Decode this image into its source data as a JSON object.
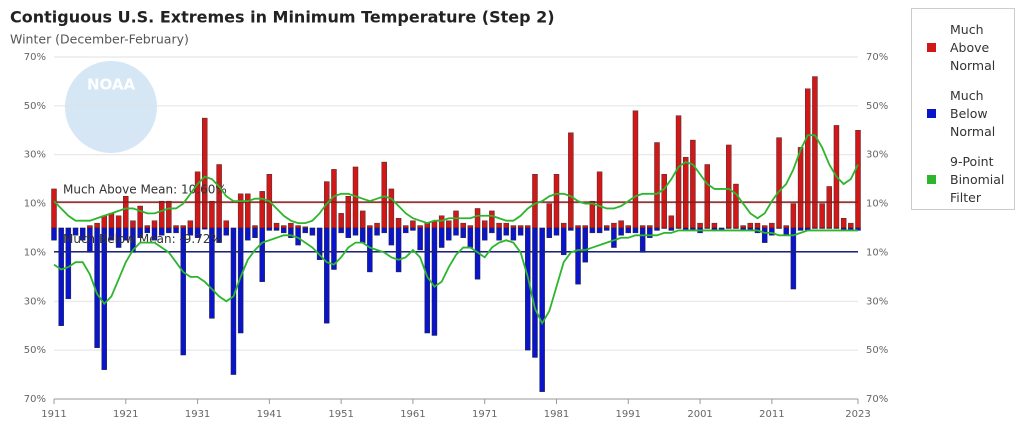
{
  "chart_data": {
    "type": "bar",
    "title": "Contiguous U.S. Extremes in Minimum Temperature (Step 2)",
    "subtitle": "Winter (December-February)",
    "logo_text": "NOAA",
    "x": [
      1911,
      1912,
      1913,
      1914,
      1915,
      1916,
      1917,
      1918,
      1919,
      1920,
      1921,
      1922,
      1923,
      1924,
      1925,
      1926,
      1927,
      1928,
      1929,
      1930,
      1931,
      1932,
      1933,
      1934,
      1935,
      1936,
      1937,
      1938,
      1939,
      1940,
      1941,
      1942,
      1943,
      1944,
      1945,
      1946,
      1947,
      1948,
      1949,
      1950,
      1951,
      1952,
      1953,
      1954,
      1955,
      1956,
      1957,
      1958,
      1959,
      1960,
      1961,
      1962,
      1963,
      1964,
      1965,
      1966,
      1967,
      1968,
      1969,
      1970,
      1971,
      1972,
      1973,
      1974,
      1975,
      1976,
      1977,
      1978,
      1979,
      1980,
      1981,
      1982,
      1983,
      1984,
      1985,
      1986,
      1987,
      1988,
      1989,
      1990,
      1991,
      1992,
      1993,
      1994,
      1995,
      1996,
      1997,
      1998,
      1999,
      2000,
      2001,
      2002,
      2003,
      2004,
      2005,
      2006,
      2007,
      2008,
      2009,
      2010,
      2011,
      2012,
      2013,
      2014,
      2015,
      2016,
      2017,
      2018,
      2019,
      2020,
      2021,
      2022,
      2023
    ],
    "series": [
      {
        "name": "Much Above Normal",
        "color": "#d01818",
        "values": [
          16,
          0,
          0,
          0,
          0,
          1,
          2,
          5,
          6,
          5,
          13,
          3,
          9,
          1,
          3,
          11,
          11,
          1,
          1,
          3,
          23,
          45,
          11,
          26,
          3,
          0,
          14,
          14,
          1,
          15,
          22,
          2,
          1,
          2,
          1,
          0.5,
          0,
          0,
          19,
          24,
          6,
          13,
          25,
          7,
          1,
          2,
          27,
          16,
          4,
          1,
          3,
          1,
          2,
          3,
          5,
          3,
          7,
          2,
          1,
          8,
          3,
          7,
          2,
          2,
          1,
          1,
          1,
          22,
          0,
          10,
          22,
          2,
          39,
          1,
          1,
          11,
          23,
          1,
          2,
          3,
          1,
          48,
          1,
          1,
          35,
          22,
          5,
          46,
          29,
          36,
          2,
          26,
          2,
          0,
          34,
          18,
          1,
          2,
          2,
          1,
          2,
          37,
          1,
          10,
          33,
          57,
          62,
          10,
          17,
          42,
          4,
          2,
          40
        ]
      },
      {
        "name": "Much Below Normal",
        "color": "#0a14c8",
        "values": [
          -5,
          -40,
          -29,
          -3,
          -5,
          -10,
          -49,
          -58,
          -5,
          -8,
          -5,
          -10,
          -4,
          -2,
          -5,
          -3,
          -2,
          -2,
          -52,
          -3,
          -4,
          -0.5,
          -37,
          -6,
          -3,
          -60,
          -43,
          -5,
          -4,
          -22,
          -1,
          -1,
          -2,
          -4,
          -7,
          -2,
          -3,
          -13,
          -39,
          -17,
          -2,
          -4,
          -3,
          -6,
          -18,
          -3,
          -2,
          -7,
          -18,
          -2,
          -1,
          -9,
          -43,
          -44,
          -8,
          -5,
          -3,
          -4,
          -8,
          -21,
          -5,
          -2,
          -5,
          -3,
          -5,
          -3,
          -50,
          -53,
          -67,
          -4,
          -3,
          -11,
          -1,
          -23,
          -14,
          -2,
          -2,
          -1,
          -8,
          -3,
          -2,
          -2,
          -10,
          -4,
          -1,
          0,
          -1,
          0,
          -1,
          -1,
          -2,
          0,
          -1,
          -1,
          0,
          0,
          -1,
          -1,
          -2,
          -6,
          -3,
          0,
          -3,
          -25,
          -1,
          -1,
          0,
          0,
          0,
          0,
          -1,
          -1,
          -1
        ]
      },
      {
        "name": "9-Point Binomial Filter",
        "color": "#2db52d",
        "type": "line",
        "values": [
          11,
          8,
          5,
          3,
          3,
          3,
          4,
          5,
          6,
          7,
          8,
          8,
          7,
          6,
          6,
          7,
          8,
          8,
          10,
          14,
          18,
          21,
          20,
          17,
          13,
          11,
          11,
          11,
          12,
          12,
          11,
          8,
          5,
          3,
          2,
          2,
          3,
          6,
          10,
          13,
          14,
          14,
          13,
          12,
          11,
          12,
          13,
          12,
          9,
          6,
          4,
          3,
          2,
          3,
          3,
          4,
          4,
          4,
          4,
          5,
          5,
          5,
          4,
          3,
          3,
          5,
          8,
          10,
          11,
          13,
          14,
          14,
          13,
          11,
          10,
          10,
          9,
          8,
          8,
          9,
          11,
          13,
          14,
          14,
          14,
          16,
          20,
          25,
          27,
          26,
          22,
          18,
          16,
          16,
          16,
          14,
          10,
          6,
          4,
          6,
          11,
          15,
          18,
          24,
          32,
          38,
          38,
          33,
          26,
          21,
          18,
          20,
          26
        ],
        "below_values": [
          -15,
          -17,
          -16,
          -14,
          -14,
          -19,
          -27,
          -31,
          -28,
          -21,
          -14,
          -9,
          -6,
          -6,
          -6,
          -8,
          -10,
          -14,
          -18,
          -20,
          -20,
          -22,
          -25,
          -28,
          -30,
          -28,
          -20,
          -13,
          -9,
          -6,
          -5,
          -4,
          -3,
          -3,
          -4,
          -6,
          -8,
          -11,
          -14,
          -15,
          -12,
          -8,
          -6,
          -6,
          -8,
          -9,
          -10,
          -12,
          -13,
          -12,
          -9,
          -12,
          -20,
          -24,
          -22,
          -16,
          -11,
          -8,
          -8,
          -10,
          -12,
          -8,
          -6,
          -5,
          -6,
          -10,
          -20,
          -33,
          -39,
          -34,
          -24,
          -14,
          -10,
          -9,
          -9,
          -8,
          -7,
          -6,
          -5,
          -4,
          -4,
          -3,
          -3,
          -3,
          -3,
          -2,
          -2,
          -1,
          -1,
          -1,
          -1,
          -1,
          -1,
          -1,
          -1,
          -1,
          -1,
          -1,
          -1,
          -2,
          -2,
          -3,
          -3,
          -3,
          -2,
          -1,
          -1,
          -1,
          -1,
          -1,
          -1,
          -1,
          -1
        ]
      }
    ],
    "mean_lines": [
      {
        "label": "Much Above Mean: 10.60%",
        "value": 10.6,
        "color": "#8a1a1a"
      },
      {
        "label": "Much Below Mean: -9.72%",
        "value": -9.72,
        "color": "#1a237e"
      }
    ],
    "xlim": [
      1911,
      2023
    ],
    "xticks": [
      1911,
      1921,
      1931,
      1941,
      1951,
      1961,
      1971,
      1981,
      1991,
      2001,
      2011,
      2023
    ],
    "ylim": [
      -70,
      70
    ],
    "yticks": [
      {
        "value": 70,
        "label": "70%"
      },
      {
        "value": 50,
        "label": "50%"
      },
      {
        "value": 30,
        "label": "30%"
      },
      {
        "value": 10,
        "label": "10%"
      },
      {
        "value": -10,
        "label": "10%"
      },
      {
        "value": -30,
        "label": "30%"
      },
      {
        "value": -50,
        "label": "50%"
      },
      {
        "value": -70,
        "label": "70%"
      }
    ],
    "grid": true
  }
}
